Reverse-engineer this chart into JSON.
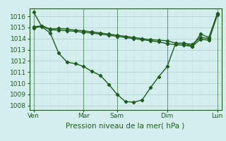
{
  "background_color": "#d4eeed",
  "grid_color_major": "#aacfcf",
  "grid_color_minor": "#c8e4e4",
  "line_color": "#1e5c1e",
  "xlabel": "Pression niveau de la mer( hPa )",
  "ylim": [
    1007.6,
    1016.7
  ],
  "yticks": [
    1008,
    1009,
    1010,
    1011,
    1012,
    1013,
    1014,
    1015,
    1016
  ],
  "xtick_labels": [
    "Ven",
    "",
    "Mar",
    "Sam",
    "",
    "Dim",
    "",
    "Lun"
  ],
  "xtick_positions": [
    0,
    3,
    6,
    10,
    13,
    16,
    19,
    22
  ],
  "vline_positions": [
    0,
    6,
    10,
    16,
    22
  ],
  "line1_x": [
    0,
    1,
    2,
    3,
    4,
    5,
    6,
    7,
    8,
    9,
    10,
    11,
    12,
    13,
    14,
    15,
    16,
    17,
    18,
    19,
    20,
    21,
    22
  ],
  "line1_y": [
    1016.4,
    1015.05,
    1014.5,
    1012.7,
    1011.9,
    1011.75,
    1011.5,
    1011.05,
    1010.7,
    1009.9,
    1009.0,
    1008.35,
    1008.3,
    1008.5,
    1009.6,
    1010.6,
    1011.5,
    1013.55,
    1013.6,
    1013.3,
    1014.4,
    1014.1,
    1016.25
  ],
  "line2_x": [
    0,
    1,
    2,
    3,
    4,
    5,
    6,
    7,
    8,
    9,
    10,
    11,
    12,
    13,
    14,
    15,
    16,
    17,
    18,
    19,
    20,
    21,
    22
  ],
  "line2_y": [
    1015.05,
    1015.15,
    1014.85,
    1014.9,
    1014.85,
    1014.75,
    1014.7,
    1014.6,
    1014.5,
    1014.4,
    1014.3,
    1014.2,
    1014.1,
    1014.0,
    1013.9,
    1013.85,
    1013.8,
    1013.6,
    1013.55,
    1013.5,
    1014.1,
    1014.0,
    1016.2
  ],
  "line3_x": [
    0,
    1,
    2,
    3,
    4,
    5,
    6,
    7,
    8,
    9,
    10,
    11,
    12,
    13,
    14,
    15,
    16,
    17,
    18,
    19,
    20,
    21,
    22
  ],
  "line3_y": [
    1014.95,
    1015.1,
    1014.8,
    1014.75,
    1014.7,
    1014.65,
    1014.55,
    1014.5,
    1014.4,
    1014.3,
    1014.2,
    1014.1,
    1014.0,
    1013.9,
    1013.8,
    1013.7,
    1013.55,
    1013.45,
    1013.4,
    1013.3,
    1013.95,
    1013.85,
    1016.1
  ]
}
